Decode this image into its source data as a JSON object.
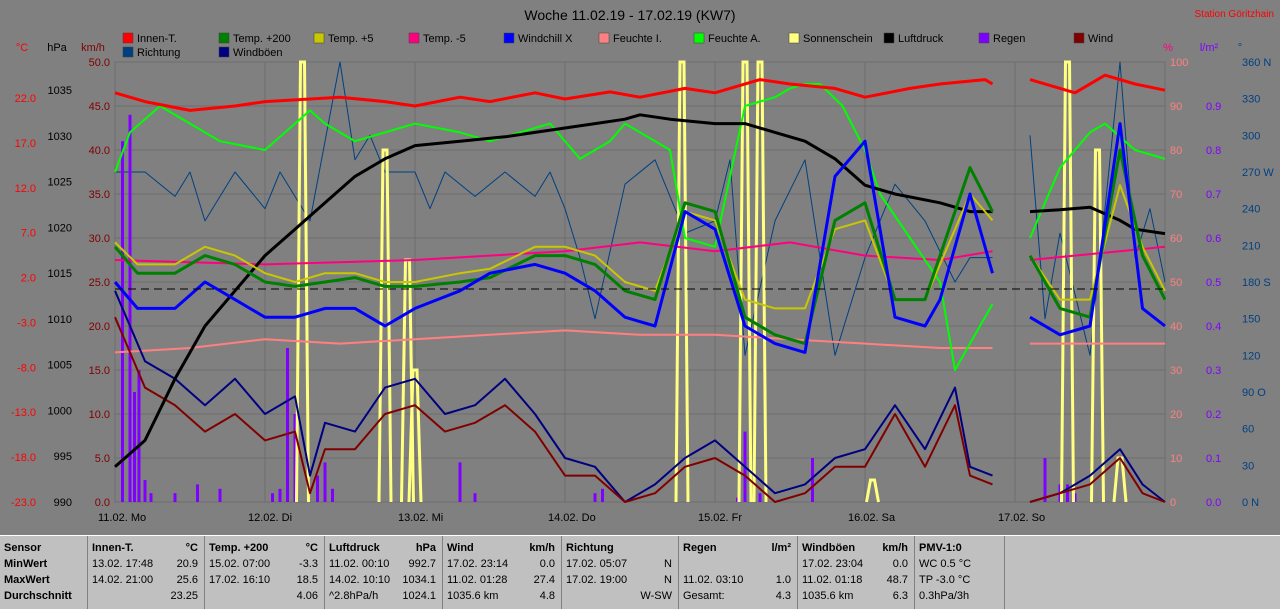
{
  "title": "Woche 11.02.19 - 17.02.19 (KW7)",
  "station": "Station Göritzhain",
  "legend": [
    {
      "label": "Innen-T.",
      "color": "#ff0000"
    },
    {
      "label": "Temp. +200",
      "color": "#008000"
    },
    {
      "label": "Temp. +5",
      "color": "#c8c800"
    },
    {
      "label": "Temp. -5",
      "color": "#ff0080"
    },
    {
      "label": "Windchill X",
      "color": "#0000ff"
    },
    {
      "label": "Feuchte I.",
      "color": "#ff8080"
    },
    {
      "label": "Feuchte A.",
      "color": "#00ff00"
    },
    {
      "label": "Sonnenschein",
      "color": "#ffff80"
    },
    {
      "label": "Luftdruck",
      "color": "#000000"
    },
    {
      "label": "Regen",
      "color": "#8000ff"
    },
    {
      "label": "Wind",
      "color": "#800000"
    },
    {
      "label": "Richtung",
      "color": "#004080"
    },
    {
      "label": "Windböen",
      "color": "#000080"
    }
  ],
  "axes": {
    "temp": {
      "unit": "°C",
      "ticks": [
        "22.0",
        "17.0",
        "12.0",
        "7.0",
        "2.0",
        "-3.0",
        "-8.0",
        "-13.0",
        "-18.0",
        "-23.0"
      ],
      "color": "#ff0000"
    },
    "pressure": {
      "unit": "hPa",
      "ticks": [
        "1035",
        "1030",
        "1025",
        "1020",
        "1015",
        "1010",
        "1005",
        "1000",
        "995",
        "990"
      ],
      "color": "#000000"
    },
    "wind": {
      "unit": "km/h",
      "ticks": [
        "50.0",
        "45.0",
        "40.0",
        "35.0",
        "30.0",
        "25.0",
        "20.0",
        "15.0",
        "10.0",
        "5.0",
        "0.0"
      ],
      "color": "#800000"
    },
    "humidity": {
      "unit": "%",
      "ticks": [
        "100",
        "90",
        "80",
        "70",
        "60",
        "50",
        "40",
        "30",
        "20",
        "10",
        "0"
      ],
      "color": "#ff8080"
    },
    "rain": {
      "unit": "l/m²",
      "ticks": [
        "0.9",
        "0.8",
        "0.7",
        "0.6",
        "0.5",
        "0.4",
        "0.3",
        "0.2",
        "0.1",
        "0.0"
      ],
      "color": "#8000ff"
    },
    "direction": {
      "unit": "°",
      "ticks": [
        "360 N",
        "330",
        "300",
        "270 W",
        "240",
        "210",
        "180 S",
        "150",
        "120",
        "90 O",
        "60",
        "30",
        "0 N"
      ],
      "color": "#004080"
    }
  },
  "days": [
    "11.02. Mo",
    "12.02. Di",
    "13.02. Mi",
    "14.02. Do",
    "15.02. Fr",
    "16.02. Sa",
    "17.02. So"
  ],
  "chart_data": {
    "type": "line",
    "x_unit": "day of week (0 = 11.02. 00:00, 7 = 18.02. 00:00)",
    "xlim": [
      0,
      7
    ],
    "gap": [
      5.85,
      6.1
    ],
    "series": [
      {
        "name": "Innen-T.",
        "axis": "temp",
        "color": "#ff0000",
        "width": 3,
        "x": [
          0,
          0.2,
          0.5,
          0.8,
          1,
          1.3,
          1.5,
          1.8,
          2,
          2.3,
          2.5,
          2.8,
          3,
          3.3,
          3.5,
          3.8,
          4,
          4.3,
          4.5,
          4.8,
          5,
          5.3,
          5.5,
          5.8,
          5.85,
          6.1,
          6.4,
          6.6,
          6.8,
          7
        ],
        "y": [
          23.5,
          22.5,
          21.5,
          22.0,
          22.5,
          22.8,
          23.0,
          22.5,
          22.0,
          23.0,
          22.5,
          23.5,
          22.8,
          23.6,
          23.0,
          24.0,
          23.5,
          25.0,
          24.5,
          24.0,
          23.0,
          24.0,
          24.5,
          25.0,
          24.5,
          25.0,
          23.5,
          25.5,
          24.5,
          23.8
        ]
      },
      {
        "name": "Luftdruck",
        "axis": "pressure",
        "color": "#000000",
        "width": 3,
        "x": [
          0,
          0.2,
          0.4,
          0.6,
          0.8,
          1,
          1.2,
          1.4,
          1.6,
          1.8,
          2,
          2.3,
          2.6,
          2.8,
          3,
          3.2,
          3.4,
          3.5,
          3.7,
          4,
          4.2,
          4.4,
          4.6,
          4.8,
          5,
          5.2,
          5.5,
          5.7,
          5.85,
          6.1,
          6.3,
          6.5,
          6.7,
          6.8,
          7
        ],
        "y": [
          994,
          997,
          1004,
          1010,
          1014,
          1018,
          1021,
          1024,
          1027,
          1029,
          1030.5,
          1031,
          1031.5,
          1032,
          1032.5,
          1033,
          1033.5,
          1034,
          1033.5,
          1033,
          1033,
          1032,
          1031,
          1029,
          1026,
          1025,
          1024,
          1023,
          1023,
          1023,
          1023.2,
          1023.5,
          1022,
          1021,
          1020.5
        ]
      },
      {
        "name": "Temp. +200",
        "axis": "temp",
        "color": "#008000",
        "width": 3,
        "x": [
          0,
          0.15,
          0.4,
          0.6,
          0.8,
          1,
          1.2,
          1.4,
          1.6,
          1.8,
          2,
          2.3,
          2.5,
          2.8,
          3,
          3.2,
          3.4,
          3.6,
          3.8,
          4,
          4.2,
          4.4,
          4.6,
          4.8,
          5,
          5.2,
          5.4,
          5.5,
          5.7,
          5.85,
          6.1,
          6.3,
          6.5,
          6.7,
          6.85,
          7
        ],
        "y": [
          6,
          3,
          3,
          5,
          4,
          2,
          1.5,
          2,
          2.5,
          1.5,
          1.5,
          2,
          2.5,
          5,
          5,
          4,
          1,
          0,
          11,
          10,
          -2,
          -4,
          -5,
          9,
          11,
          0,
          0,
          5,
          15,
          10,
          5,
          -1,
          -2,
          17,
          5,
          0
        ]
      },
      {
        "name": "Temp. +5",
        "axis": "temp",
        "color": "#c8c800",
        "width": 2,
        "x": [
          0,
          0.15,
          0.4,
          0.6,
          0.8,
          1,
          1.2,
          1.4,
          1.6,
          1.8,
          2,
          2.3,
          2.5,
          2.8,
          3,
          3.2,
          3.4,
          3.6,
          3.8,
          4,
          4.2,
          4.4,
          4.6,
          4.8,
          5,
          5.2,
          5.4,
          5.5,
          5.7,
          5.85,
          6.1,
          6.3,
          6.5,
          6.7,
          6.85,
          7
        ],
        "y": [
          6.5,
          4,
          4,
          6,
          5,
          3,
          2,
          3,
          3,
          2,
          2,
          3,
          3.5,
          6,
          6,
          5,
          2,
          1,
          10,
          9,
          0,
          -1,
          -1,
          8,
          9,
          0,
          0,
          4,
          12,
          9,
          5,
          0,
          0,
          13,
          6,
          1
        ]
      },
      {
        "name": "Windchill X",
        "axis": "temp",
        "color": "#0000ff",
        "width": 3,
        "x": [
          0,
          0.15,
          0.4,
          0.6,
          0.8,
          1,
          1.2,
          1.4,
          1.6,
          1.8,
          2,
          2.3,
          2.5,
          2.8,
          3,
          3.2,
          3.4,
          3.6,
          3.8,
          4,
          4.2,
          4.4,
          4.6,
          4.8,
          5,
          5.2,
          5.4,
          5.5,
          5.7,
          5.85,
          6.1,
          6.3,
          6.5,
          6.7,
          6.85,
          7
        ],
        "y": [
          2,
          -1,
          -1,
          2,
          0,
          -2,
          -2,
          -1,
          -1,
          -3,
          -1,
          1,
          3,
          4,
          3,
          1,
          -2,
          -3,
          10,
          8,
          -3,
          -5,
          -6,
          14,
          18,
          -2,
          -3,
          0,
          12,
          3,
          -2,
          -4,
          -3,
          20,
          -1,
          -3
        ]
      },
      {
        "name": "Temp. -5",
        "axis": "temp",
        "color": "#ff0080",
        "width": 2,
        "x": [
          0,
          1,
          2,
          3,
          3.5,
          4,
          4.5,
          5,
          5.5,
          5.85,
          6.1,
          7
        ],
        "y": [
          4.5,
          4,
          4.5,
          5.5,
          6.5,
          5.5,
          6.5,
          5,
          4.5,
          5.5,
          4.5,
          6
        ]
      },
      {
        "name": "Feuchte I.",
        "axis": "humidity",
        "color": "#ff8080",
        "width": 2,
        "x": [
          0,
          0.5,
          1,
          1.5,
          2,
          2.5,
          3,
          3.5,
          4,
          4.5,
          5,
          5.5,
          5.85,
          6.1,
          7
        ],
        "y": [
          34,
          35,
          37,
          36,
          37,
          38,
          39,
          38,
          38,
          37,
          36,
          35,
          35,
          36,
          36
        ]
      },
      {
        "name": "Feuchte A.",
        "axis": "humidity",
        "color": "#00ff00",
        "width": 2,
        "x": [
          0,
          0.1,
          0.3,
          0.5,
          0.7,
          1,
          1.2,
          1.3,
          1.4,
          1.6,
          1.8,
          2,
          2.3,
          2.5,
          2.7,
          2.9,
          3,
          3.1,
          3.3,
          3.4,
          3.5,
          3.7,
          3.8,
          4,
          4.2,
          4.4,
          4.5,
          4.6,
          4.7,
          4.85,
          5,
          5.1,
          5.3,
          5.5,
          5.6,
          5.85,
          6.1,
          6.3,
          6.5,
          6.6,
          6.8,
          7
        ],
        "y": [
          75,
          84,
          90,
          86,
          82,
          80,
          86,
          89,
          86,
          82,
          84,
          86,
          84,
          82,
          84,
          86,
          82,
          78,
          82,
          86,
          84,
          80,
          60,
          58,
          90,
          92,
          94,
          95,
          95,
          90,
          80,
          70,
          60,
          50,
          30,
          45,
          60,
          76,
          84,
          86,
          80,
          78
        ]
      },
      {
        "name": "Richtung",
        "axis": "direction",
        "color": "#004080",
        "width": 1,
        "x": [
          0,
          0.2,
          0.4,
          0.5,
          0.6,
          0.8,
          1,
          1.1,
          1.3,
          1.5,
          1.6,
          1.7,
          1.8,
          2,
          2.1,
          2.2,
          2.4,
          2.6,
          2.8,
          2.9,
          3,
          3.1,
          3.2,
          3.4,
          3.6,
          3.8,
          4,
          4.1,
          4.2,
          4.4,
          4.6,
          4.8,
          5,
          5.2,
          5.4,
          5.6,
          5.7,
          5.85,
          6.1,
          6.2,
          6.3,
          6.5,
          6.7,
          6.8,
          6.9,
          7
        ],
        "y": [
          270,
          270,
          250,
          270,
          230,
          270,
          240,
          270,
          230,
          360,
          280,
          300,
          270,
          270,
          240,
          270,
          250,
          270,
          250,
          270,
          240,
          200,
          150,
          260,
          280,
          220,
          230,
          280,
          120,
          230,
          280,
          120,
          200,
          260,
          230,
          180,
          200,
          200,
          300,
          150,
          220,
          120,
          360,
          200,
          240,
          180
        ]
      },
      {
        "name": "Windböen",
        "axis": "wind",
        "color": "#000080",
        "width": 2,
        "x": [
          0,
          0.2,
          0.4,
          0.6,
          0.8,
          1,
          1.2,
          1.3,
          1.4,
          1.6,
          1.8,
          2,
          2.2,
          2.4,
          2.6,
          2.8,
          3,
          3.2,
          3.4,
          3.6,
          3.8,
          4,
          4.2,
          4.4,
          4.6,
          4.8,
          5,
          5.2,
          5.4,
          5.6,
          5.7,
          5.85,
          6.1,
          6.3,
          6.5,
          6.7,
          6.85,
          7
        ],
        "y": [
          24,
          16,
          14,
          11,
          14,
          10,
          12,
          3,
          9,
          8,
          13,
          14,
          10,
          11,
          14,
          10,
          5,
          4,
          0,
          2,
          5,
          7,
          4,
          1,
          2,
          5,
          6,
          11,
          6,
          13,
          4,
          3,
          0,
          1,
          3,
          6,
          2,
          0
        ]
      },
      {
        "name": "Wind",
        "axis": "wind",
        "color": "#800000",
        "width": 2,
        "x": [
          0,
          0.2,
          0.4,
          0.6,
          0.8,
          1,
          1.2,
          1.3,
          1.4,
          1.6,
          1.8,
          2,
          2.2,
          2.4,
          2.6,
          2.8,
          3,
          3.2,
          3.4,
          3.6,
          3.8,
          4,
          4.2,
          4.4,
          4.6,
          4.8,
          5,
          5.2,
          5.4,
          5.6,
          5.7,
          5.85,
          6.1,
          6.3,
          6.5,
          6.7,
          6.85,
          7
        ],
        "y": [
          21,
          13,
          11,
          8,
          10,
          7,
          8,
          1,
          6,
          6,
          10,
          11,
          8,
          9,
          11,
          8,
          3,
          3,
          0,
          1,
          4,
          5,
          3,
          0,
          1,
          4,
          4,
          10,
          4,
          11,
          3,
          2,
          0,
          1,
          2,
          5,
          1,
          0
        ]
      },
      {
        "name": "Sonnenschein",
        "axis": "humidity",
        "color": "#ffff80",
        "width": 3,
        "type": "spikes",
        "x": [
          1.25,
          1.8,
          1.95,
          2.0,
          3.78,
          4.2,
          4.3,
          5.05,
          6.35,
          6.55,
          6.7
        ],
        "y": [
          100,
          80,
          55,
          30,
          100,
          100,
          100,
          5,
          100,
          80,
          10
        ]
      },
      {
        "name": "Regen",
        "axis": "rain",
        "color": "#8000ff",
        "type": "bar",
        "x": [
          0.05,
          0.1,
          0.13,
          0.16,
          0.2,
          0.24,
          0.4,
          0.55,
          0.7,
          1.05,
          1.1,
          1.15,
          1.2,
          1.35,
          1.4,
          1.45,
          2.3,
          2.4,
          3.2,
          3.25,
          4.15,
          4.2,
          4.3,
          4.65,
          6.2,
          6.3,
          6.35,
          6.4
        ],
        "y": [
          0.82,
          0.88,
          0.25,
          0.3,
          0.05,
          0.02,
          0.02,
          0.04,
          0.03,
          0.02,
          0.03,
          0.35,
          0.2,
          0.06,
          0.09,
          0.03,
          0.09,
          0.02,
          0.02,
          0.03,
          0.01,
          0.16,
          0.02,
          0.1,
          0.1,
          0.04,
          0.04,
          0.02
        ]
      }
    ]
  },
  "stats": [
    {
      "header": [
        "Sensor",
        ""
      ],
      "rows": [
        [
          "MinWert",
          ""
        ],
        [
          "MaxWert",
          ""
        ],
        [
          "Durchschnitt",
          ""
        ]
      ]
    },
    {
      "header": [
        "Innen-T.",
        "°C"
      ],
      "rows": [
        [
          "13.02.  17:48",
          "20.9"
        ],
        [
          "14.02.  21:00",
          "25.6"
        ],
        [
          "",
          "23.25"
        ]
      ]
    },
    {
      "header": [
        "Temp. +200",
        "°C"
      ],
      "rows": [
        [
          "15.02.  07:00",
          "-3.3"
        ],
        [
          "17.02.  16:10",
          "18.5"
        ],
        [
          "",
          "4.06"
        ]
      ]
    },
    {
      "header": [
        "Luftdruck",
        "hPa"
      ],
      "rows": [
        [
          "11.02.  00:10",
          "992.7"
        ],
        [
          "14.02.  10:10",
          "1034.1"
        ],
        [
          "^2.8hPa/h",
          "1024.1"
        ]
      ]
    },
    {
      "header": [
        "Wind",
        "km/h"
      ],
      "rows": [
        [
          "17.02.  23:14",
          "0.0"
        ],
        [
          "11.02.  01:28",
          "27.4"
        ],
        [
          "1035.6 km",
          "4.8"
        ]
      ]
    },
    {
      "header": [
        "Richtung",
        ""
      ],
      "rows": [
        [
          "17.02.  05:07",
          "N"
        ],
        [
          "17.02.  19:00",
          "N"
        ],
        [
          "",
          "W-SW"
        ]
      ]
    },
    {
      "header": [
        "Regen",
        "l/m²"
      ],
      "rows": [
        [
          "",
          ""
        ],
        [
          "11.02.  03:10",
          "1.0"
        ],
        [
          "Gesamt:",
          "4.3"
        ]
      ]
    },
    {
      "header": [
        "Windböen",
        "km/h"
      ],
      "rows": [
        [
          "17.02.  23:04",
          "0.0"
        ],
        [
          "11.02.  01:18",
          "48.7"
        ],
        [
          "1035.6 km",
          "6.3"
        ]
      ]
    },
    {
      "header": [
        "PMV-1:0",
        ""
      ],
      "rows": [
        [
          "WC 0.5 °C",
          ""
        ],
        [
          "TP -3.0 °C",
          ""
        ],
        [
          "0.3hPa/3h",
          ""
        ]
      ]
    }
  ]
}
